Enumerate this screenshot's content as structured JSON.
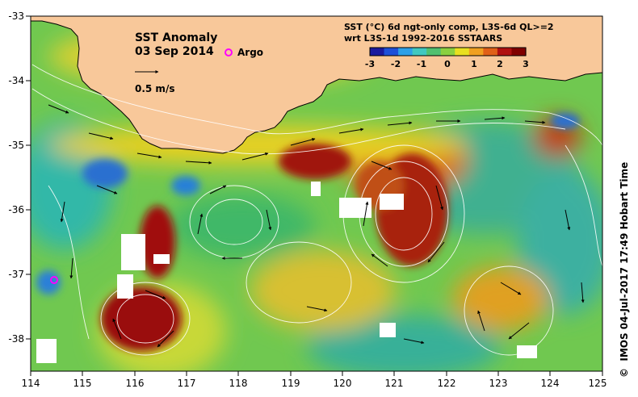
{
  "header": {
    "title": "SST Anomaly",
    "date": "03 Sep 2014",
    "argo_label": "Argo",
    "vector_scale_label": "0.5 m/s",
    "product_line1": "SST (°C) 6d ngt-only comp, L3S-6d QL>=2",
    "product_line2": "wrt L3S-1d 1992-2016 SSTAARS"
  },
  "colorbar": {
    "ticks": [
      "-3",
      "-2",
      "-1",
      "0",
      "1",
      "2",
      "3"
    ],
    "range": [
      -3,
      3
    ],
    "colors": [
      "#1a1a9e",
      "#1e50d8",
      "#2da0e8",
      "#40c8c0",
      "#50c070",
      "#8ad040",
      "#e8e020",
      "#f0a020",
      "#e06018",
      "#b01010",
      "#800000"
    ]
  },
  "map": {
    "lon_ticks": [
      "114",
      "115",
      "116",
      "117",
      "118",
      "119",
      "120",
      "121",
      "122",
      "123",
      "124",
      "125"
    ],
    "lat_ticks": [
      "-33",
      "-34",
      "-35",
      "-36",
      "-37",
      "-38"
    ],
    "lon_range": [
      114,
      125
    ],
    "lat_range": [
      -38.5,
      -33
    ],
    "land_color": "#f8c89a",
    "argo_floats": [
      {
        "lon": 114.4,
        "lat": -37.1
      }
    ]
  },
  "footer": {
    "credit": "IMOS 04-Jul-2017 17:49 Hobart Time",
    "copyright_symbol": "©"
  }
}
